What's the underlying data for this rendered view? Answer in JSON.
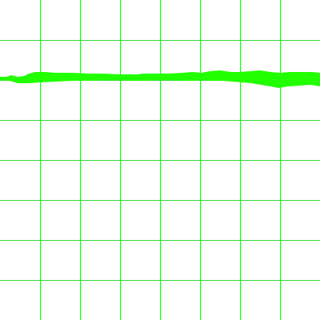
{
  "canvas": {
    "background_color": "#ffffff",
    "grid_color": "#33dd33",
    "stroke_color": "#22ff00"
  },
  "grid": {
    "columns": 8,
    "rows": 8
  }
}
